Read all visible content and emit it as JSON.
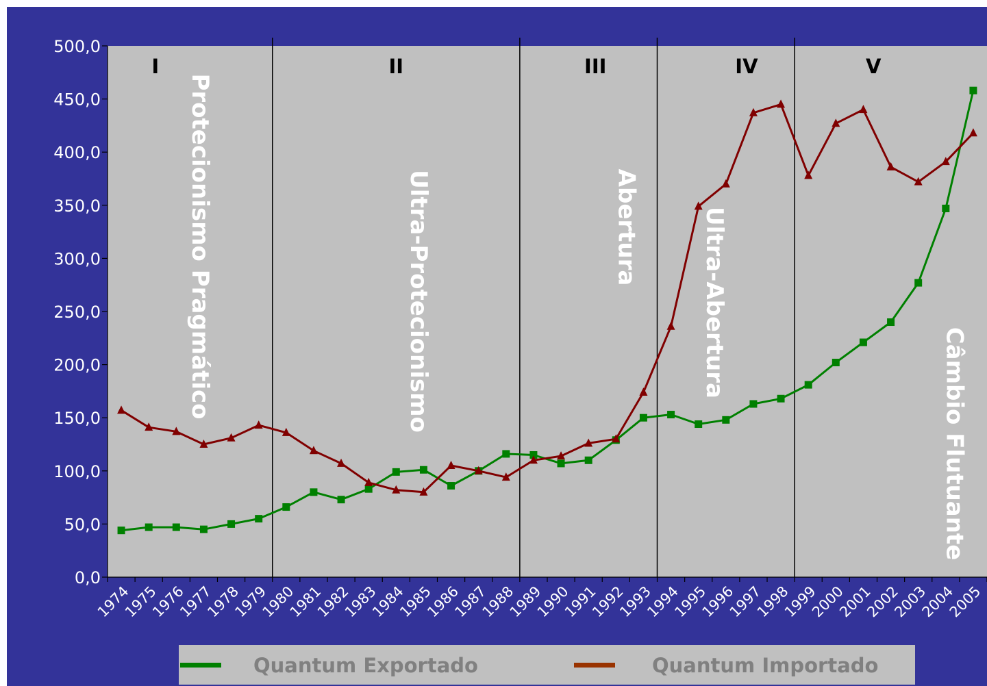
{
  "chart_data": {
    "type": "line",
    "title": "",
    "xlabel": "",
    "ylabel": "",
    "categories": [
      "1974",
      "1975",
      "1976",
      "1977",
      "1978",
      "1979",
      "1980",
      "1981",
      "1982",
      "1983",
      "1984",
      "1985",
      "1986",
      "1987",
      "1988",
      "1989",
      "1990",
      "1991",
      "1992",
      "1993",
      "1994",
      "1995",
      "1996",
      "1997",
      "1998",
      "1999",
      "2000",
      "2001",
      "2002",
      "2003",
      "2004",
      "2005"
    ],
    "y_ticks": [
      "0,0",
      "50,0",
      "100,0",
      "150,0",
      "200,0",
      "250,0",
      "300,0",
      "350,0",
      "400,0",
      "450,0",
      "500,0"
    ],
    "ylim": [
      0,
      500
    ],
    "grid": false,
    "legend_position": "bottom",
    "series": [
      {
        "name": "Quantum Exportado",
        "color": "#008000",
        "marker": "square",
        "values": [
          44,
          47,
          47,
          45,
          50,
          55,
          66,
          80,
          73,
          83,
          99,
          101,
          86,
          100,
          116,
          115,
          107,
          110,
          129,
          150,
          153,
          144,
          148,
          163,
          168,
          181,
          202,
          221,
          240,
          277,
          347,
          458
        ]
      },
      {
        "name": "Quantum Importado",
        "color": "#800000",
        "marker": "triangle",
        "values": [
          157,
          141,
          137,
          125,
          131,
          143,
          136,
          119,
          107,
          89,
          82,
          80,
          105,
          100,
          94,
          110,
          114,
          126,
          130,
          174,
          236,
          349,
          370,
          437,
          445,
          378,
          427,
          440,
          386,
          372,
          391,
          418
        ]
      }
    ],
    "period_dividers": [
      "1979|1980",
      "1988|1989",
      "1993|1994",
      "1998|1999"
    ],
    "periods": [
      {
        "numeral": "I",
        "name": "Protecionismo Pragmático"
      },
      {
        "numeral": "II",
        "name": "Ultra-Protecionismo"
      },
      {
        "numeral": "III",
        "name": "Abertura"
      },
      {
        "numeral": "IV",
        "name": "Ultra-Abertura"
      },
      {
        "numeral": "V",
        "name": "Câmbio Flutuante"
      }
    ]
  }
}
